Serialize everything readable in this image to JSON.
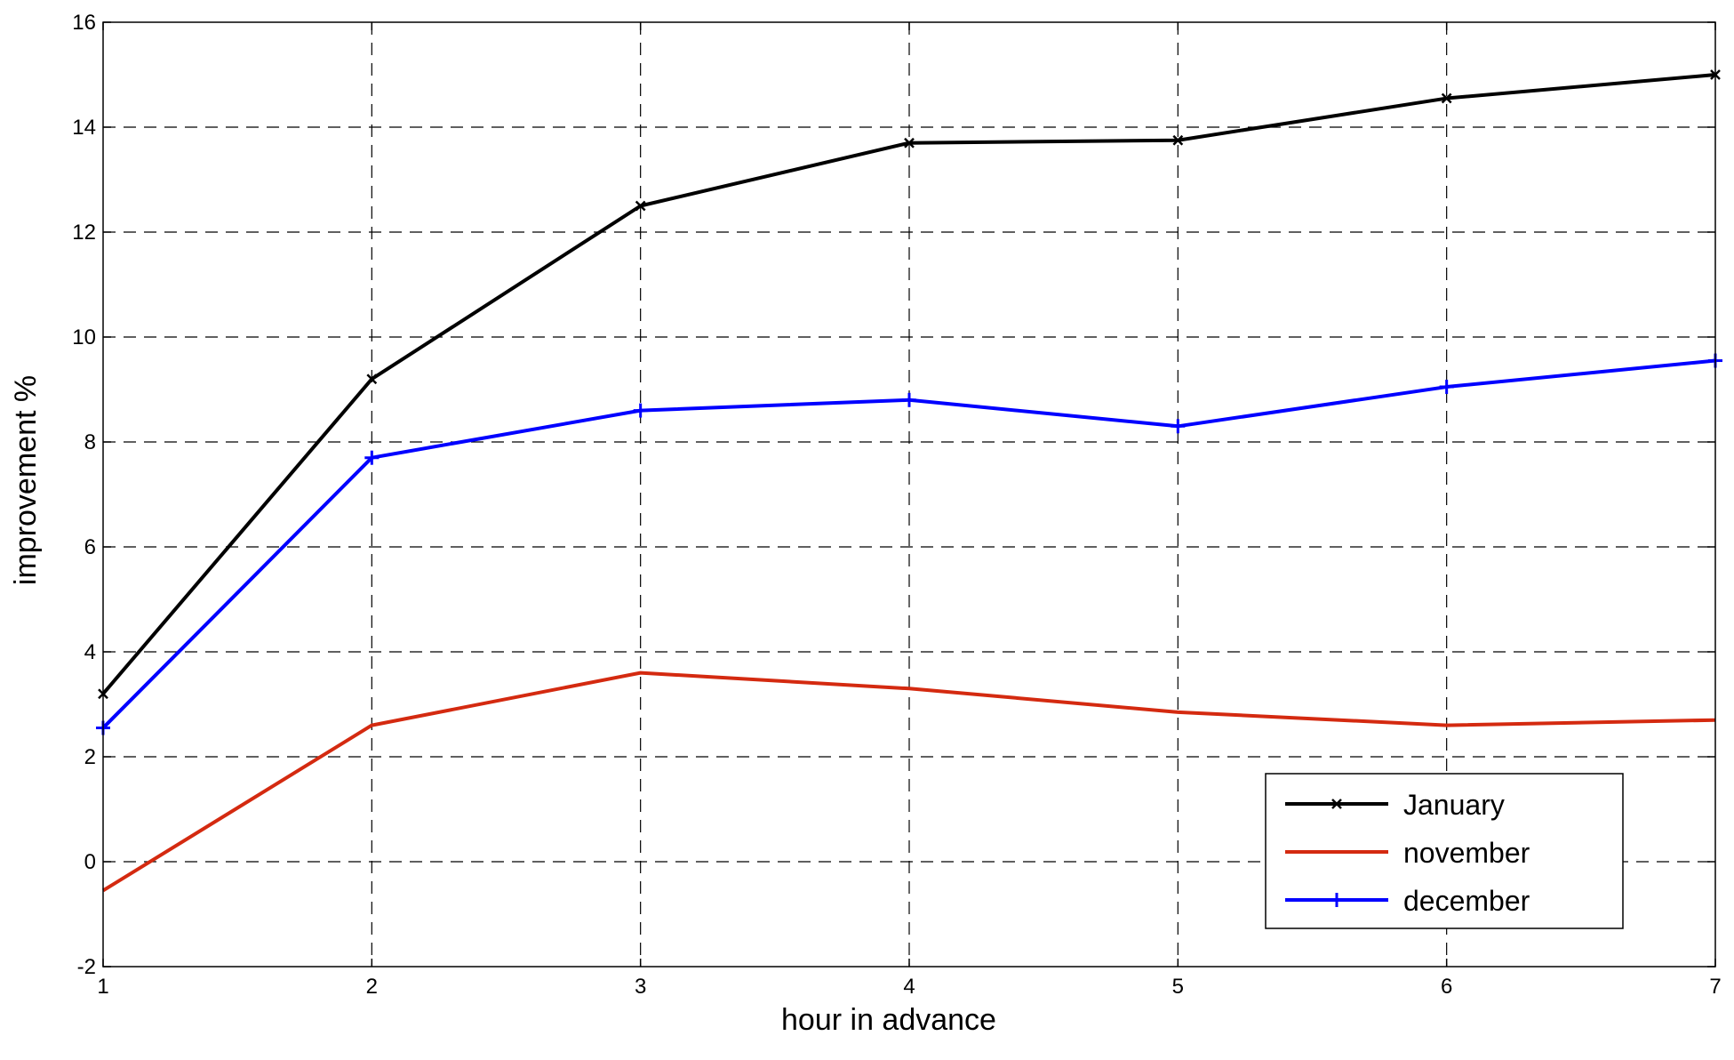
{
  "chart_data": {
    "type": "line",
    "title": "",
    "xlabel": "hour in advance",
    "ylabel": "improvement %",
    "x": [
      1,
      2,
      3,
      4,
      5,
      6,
      7
    ],
    "xlim": [
      1,
      7
    ],
    "ylim": [
      -2,
      16
    ],
    "xticks": [
      1,
      2,
      3,
      4,
      5,
      6,
      7
    ],
    "yticks": [
      -2,
      0,
      2,
      4,
      6,
      8,
      10,
      12,
      14,
      16
    ],
    "xtick_labels": [
      "1",
      "2",
      "3",
      "4",
      "5",
      "6",
      "7"
    ],
    "ytick_labels": [
      "-2",
      "0",
      "2",
      "4",
      "6",
      "8",
      "10",
      "12",
      "14",
      "16"
    ],
    "grid": true,
    "legend_position": "bottom-right",
    "series": [
      {
        "name": "January",
        "color": "#000000",
        "marker": "x",
        "values": [
          3.2,
          9.2,
          12.5,
          13.7,
          13.75,
          14.55,
          15.0
        ]
      },
      {
        "name": "november",
        "color": "#d42a10",
        "marker": "none",
        "values": [
          -0.55,
          2.6,
          3.6,
          3.3,
          2.85,
          2.6,
          2.7
        ]
      },
      {
        "name": "december",
        "color": "#0000ff",
        "marker": "+",
        "values": [
          2.55,
          7.7,
          8.6,
          8.8,
          8.3,
          9.05,
          9.55
        ]
      }
    ]
  }
}
